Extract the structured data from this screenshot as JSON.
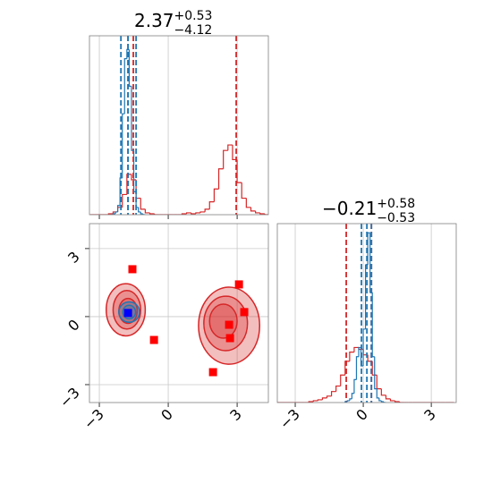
{
  "chart_data": [
    {
      "type": "histogram",
      "title": {
        "value": "2.37",
        "upper": "+0.53",
        "lower": "−4.12"
      },
      "xlim": [
        -3.43,
        4.36
      ],
      "ylim": [
        0,
        195
      ],
      "xticks": [
        -3,
        0,
        3
      ],
      "grid": true,
      "series": [
        {
          "color": "#d62728",
          "bins": [
            -3.4,
            -3.2,
            -3.0,
            -2.8,
            -2.6,
            -2.4,
            -2.2,
            -2.0,
            -1.8,
            -1.6,
            -1.4,
            -1.2,
            -1.0,
            -0.8,
            -0.6,
            -0.4,
            -0.2,
            0.0,
            0.2,
            0.4,
            0.6,
            0.8,
            1.0,
            1.2,
            1.4,
            1.6,
            1.8,
            2.0,
            2.2,
            2.4,
            2.6,
            2.8,
            3.0,
            3.2,
            3.4,
            3.6,
            3.8,
            4.0,
            4.2,
            4.4
          ],
          "values": [
            0,
            0,
            0,
            0,
            1,
            3,
            8,
            22,
            44,
            38,
            18,
            6,
            2,
            1,
            0,
            0,
            0,
            0,
            0,
            0,
            1,
            2,
            1,
            2,
            3,
            6,
            14,
            28,
            50,
            70,
            76,
            60,
            35,
            18,
            8,
            4,
            2,
            1,
            0
          ],
          "quantiles": [
            -1.75,
            -1.52,
            2.96
          ]
        },
        {
          "color": "#1f77b4",
          "bins": [
            -2.4,
            -2.3,
            -2.2,
            -2.1,
            -2.0,
            -1.9,
            -1.8,
            -1.7,
            -1.6,
            -1.5,
            -1.4,
            -1.3,
            -1.2,
            -1.1,
            -1.0
          ],
          "values": [
            1,
            3,
            10,
            40,
            110,
            170,
            180,
            140,
            70,
            25,
            8,
            3,
            1,
            0
          ],
          "quantiles": [
            -2.06,
            -1.75,
            -1.4
          ]
        }
      ]
    },
    {
      "type": "scatter",
      "xlim": [
        -3.43,
        4.36
      ],
      "ylim": [
        -3.79,
        4.1
      ],
      "xticks": [
        {
          "value": -3,
          "label": "−3"
        },
        0,
        3
      ],
      "yticks": [
        {
          "value": -3,
          "label": "−3"
        },
        0,
        3
      ],
      "grid": true,
      "contours": [
        {
          "color": "#d62728",
          "levels": [
            [
              -1.85,
              0.3,
              0.85,
              1.15
            ],
            [
              -1.8,
              0.3,
              0.6,
              0.85
            ],
            [
              -1.75,
              0.25,
              0.4,
              0.55
            ],
            [
              2.65,
              -0.4,
              1.33,
              1.7
            ],
            [
              2.5,
              -0.3,
              0.95,
              1.2
            ],
            [
              2.4,
              -0.2,
              0.6,
              0.75
            ]
          ]
        },
        {
          "color": "#1f77b4",
          "levels": [
            [
              -1.7,
              0.2,
              0.45,
              0.45
            ],
            [
              -1.7,
              0.2,
              0.28,
              0.3
            ]
          ]
        }
      ],
      "series": [
        {
          "color": "#ff0000",
          "x": [
            -1.56,
            -0.62,
            3.08,
            3.31,
            2.65,
            2.69,
            1.95
          ],
          "y": [
            2.09,
            -1.03,
            1.42,
            0.2,
            -0.36,
            -0.95,
            -2.45
          ]
        },
        {
          "color": "#0000ff",
          "x": [
            -1.75
          ],
          "y": [
            0.16
          ]
        }
      ]
    },
    {
      "type": "histogram",
      "title": {
        "value": "−0.21",
        "upper": "+0.58",
        "lower": "−0.53"
      },
      "xlim": [
        -3.79,
        4.1
      ],
      "ylim": [
        0,
        195
      ],
      "xticks": [
        {
          "value": -3,
          "label": "−3"
        },
        0,
        3
      ],
      "grid": true,
      "series": [
        {
          "color": "#d62728",
          "bins": [
            -3.8,
            -3.6,
            -3.4,
            -3.2,
            -3.0,
            -2.8,
            -2.6,
            -2.4,
            -2.2,
            -2.0,
            -1.8,
            -1.6,
            -1.4,
            -1.2,
            -1.0,
            -0.8,
            -0.6,
            -0.4,
            -0.2,
            0.0,
            0.2,
            0.4,
            0.6,
            0.8,
            1.0,
            1.2,
            1.4,
            1.6,
            1.8,
            2.0,
            2.2,
            2.4,
            2.6,
            2.8,
            3.0,
            3.2,
            3.4,
            3.6,
            3.8,
            4.0
          ],
          "values": [
            0,
            0,
            0,
            0,
            0,
            0,
            0,
            1,
            2,
            3,
            5,
            7,
            12,
            18,
            30,
            45,
            55,
            60,
            58,
            52,
            45,
            30,
            15,
            8,
            4,
            2,
            1,
            0,
            0,
            0,
            0,
            0,
            0,
            0,
            0,
            0,
            0,
            0,
            0
          ],
          "quantiles": [
            -0.75,
            0.36
          ]
        },
        {
          "color": "#1f77b4",
          "bins": [
            -0.8,
            -0.7,
            -0.6,
            -0.5,
            -0.4,
            -0.3,
            -0.2,
            -0.1,
            0.0,
            0.1,
            0.2,
            0.3,
            0.4,
            0.5,
            0.6,
            0.7,
            0.8,
            0.9,
            1.0
          ],
          "values": [
            1,
            2,
            4,
            10,
            25,
            50,
            60,
            40,
            80,
            150,
            185,
            120,
            50,
            15,
            5,
            2,
            1,
            0
          ],
          "quantiles": [
            -0.08,
            0.16,
            0.36
          ]
        }
      ]
    }
  ]
}
